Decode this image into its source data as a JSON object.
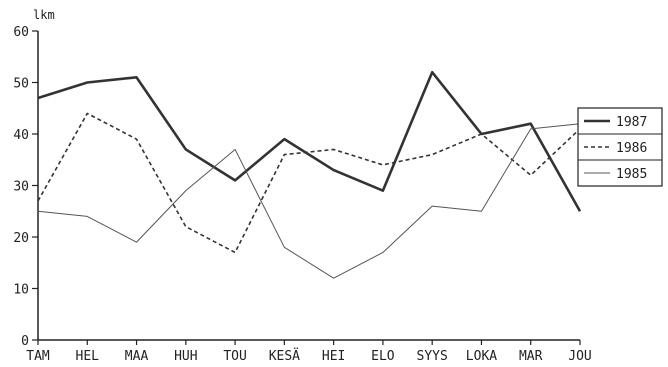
{
  "chart_data": {
    "type": "line",
    "title": "",
    "xlabel": "",
    "ylabel": "lkm",
    "ylim": [
      0,
      60
    ],
    "yticks": [
      0,
      10,
      20,
      30,
      40,
      50,
      60
    ],
    "grid": false,
    "legend_position": "right",
    "categories": [
      "TAM",
      "HEL",
      "MAA",
      "HUH",
      "TOU",
      "KESÄ",
      "HEI",
      "ELO",
      "SYYS",
      "LOKA",
      "MAR",
      "JOU"
    ],
    "series": [
      {
        "name": "1987",
        "style": "thick-solid",
        "color": "#333333",
        "values": [
          47,
          50,
          51,
          37,
          31,
          39,
          33,
          29,
          52,
          40,
          42,
          25
        ]
      },
      {
        "name": "1986",
        "style": "dashed",
        "color": "#333333",
        "values": [
          27,
          44,
          39,
          22,
          17,
          36,
          37,
          34,
          36,
          40,
          32,
          41
        ]
      },
      {
        "name": "1985",
        "style": "thin-solid",
        "color": "#555555",
        "values": [
          25,
          24,
          19,
          29,
          37,
          18,
          12,
          17,
          26,
          25,
          41,
          42
        ]
      }
    ]
  }
}
